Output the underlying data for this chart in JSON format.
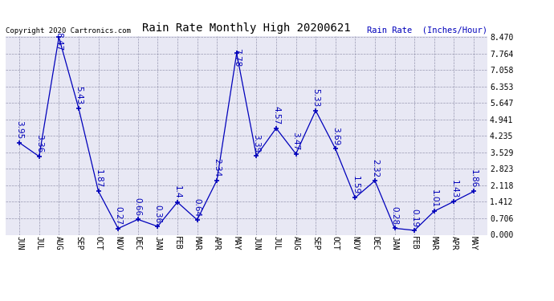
{
  "title": "Rain Rate Monthly High 20200621",
  "ylabel": "Rain Rate  (Inches/Hour)",
  "copyright": "Copyright 2020 Cartronics.com",
  "line_color": "#0000bb",
  "fig_bg_color": "#ffffff",
  "plot_bg_color": "#e8e8f4",
  "categories": [
    "JUN",
    "JUL",
    "AUG",
    "SEP",
    "OCT",
    "NOV",
    "DEC",
    "JAN",
    "FEB",
    "MAR",
    "APR",
    "MAY",
    "JUN",
    "JUL",
    "AUG",
    "SEP",
    "OCT",
    "NOV",
    "DEC",
    "JAN",
    "FEB",
    "MAR",
    "APR",
    "MAY"
  ],
  "values": [
    3.95,
    3.36,
    8.47,
    5.43,
    1.87,
    0.27,
    0.66,
    0.36,
    1.4,
    0.64,
    2.34,
    7.78,
    3.39,
    4.57,
    3.47,
    5.33,
    3.69,
    1.59,
    2.32,
    0.28,
    0.19,
    1.01,
    1.43,
    1.86
  ],
  "yticks": [
    0.0,
    0.706,
    1.412,
    2.118,
    2.823,
    3.529,
    4.235,
    4.941,
    5.647,
    6.353,
    7.058,
    7.764,
    8.47
  ],
  "ymin": 0.0,
  "ymax": 8.47,
  "title_fontsize": 10,
  "label_fontsize": 7.5,
  "tick_fontsize": 7,
  "copyright_fontsize": 6.5
}
